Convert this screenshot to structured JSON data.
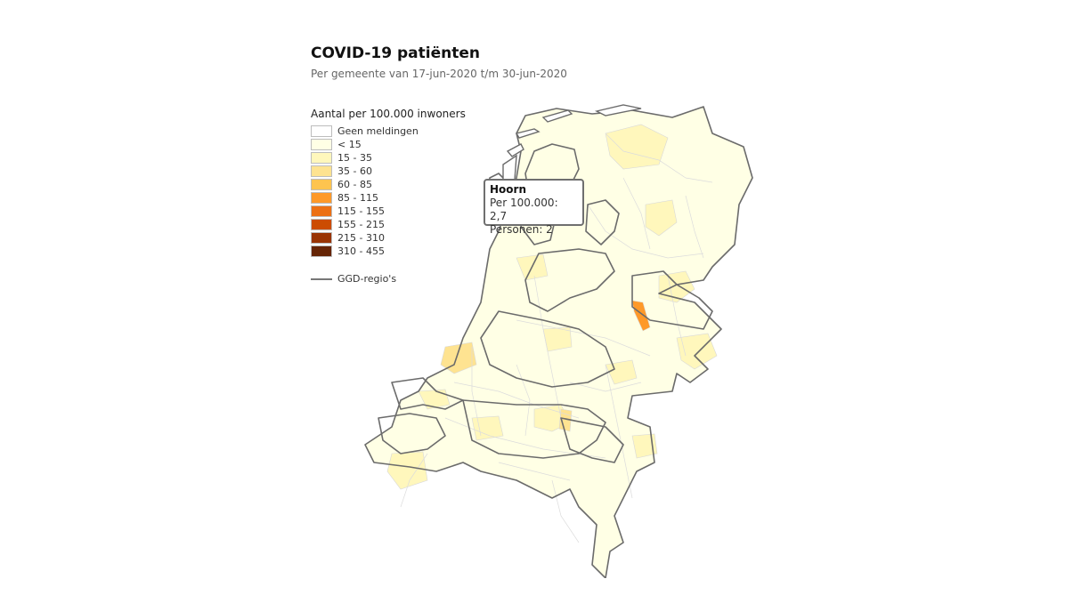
{
  "header": {
    "title": "COVID-19 patiënten",
    "subtitle": "Per gemeente van 17-jun-2020 t/m 30-jun-2020"
  },
  "legend": {
    "title": "Aantal per 100.000 inwoners",
    "items": [
      {
        "label": "Geen meldingen",
        "color": "#ffffff"
      },
      {
        "label": "< 15",
        "color": "#ffffe5"
      },
      {
        "label": "15 - 35",
        "color": "#fff7bc"
      },
      {
        "label": "35 - 60",
        "color": "#fee391"
      },
      {
        "label": "60 - 85",
        "color": "#fec44f"
      },
      {
        "label": "85 - 115",
        "color": "#fe9929"
      },
      {
        "label": "115 - 155",
        "color": "#ec7014"
      },
      {
        "label": "155 - 215",
        "color": "#cc4c02"
      },
      {
        "label": "215 - 310",
        "color": "#993404"
      },
      {
        "label": "310 - 455",
        "color": "#662506"
      }
    ],
    "ggd_label": "GGD-regio's"
  },
  "tooltip": {
    "name": "Hoorn",
    "per100k": "Per 100.000: 2,7",
    "persons": "Personen: 2"
  }
}
